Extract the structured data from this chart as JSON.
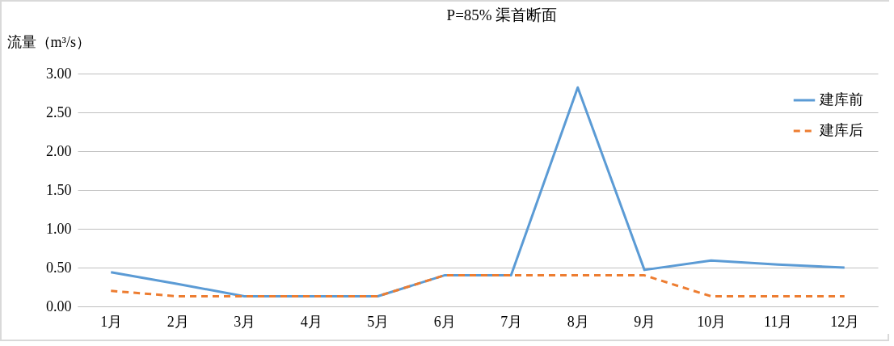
{
  "chart_data": {
    "type": "line",
    "title": "P=85%  渠首断面",
    "ylabel": "流量（m³/s）",
    "categories": [
      "1月",
      "2月",
      "3月",
      "4月",
      "5月",
      "6月",
      "7月",
      "8月",
      "9月",
      "10月",
      "11月",
      "12月"
    ],
    "series": [
      {
        "name": "建库前",
        "color": "#5b9bd5",
        "line_style": "solid",
        "values": [
          0.44,
          0.29,
          0.13,
          0.13,
          0.13,
          0.4,
          0.4,
          2.82,
          0.47,
          0.59,
          0.54,
          0.5
        ]
      },
      {
        "name": "建库后",
        "color": "#ed7d31",
        "line_style": "dashed",
        "values": [
          0.2,
          0.13,
          0.13,
          0.13,
          0.13,
          0.4,
          0.4,
          0.4,
          0.4,
          0.13,
          0.13,
          0.13
        ]
      }
    ],
    "ylim": [
      0,
      3
    ],
    "yticks": [
      {
        "value": 0,
        "label": "0.00"
      },
      {
        "value": 0.5,
        "label": "0.50"
      },
      {
        "value": 1,
        "label": "1.00"
      },
      {
        "value": 1.5,
        "label": "1.50"
      },
      {
        "value": 2,
        "label": "2.00"
      },
      {
        "value": 2.5,
        "label": "2.50"
      },
      {
        "value": 3,
        "label": "3.00"
      }
    ],
    "grid": "y",
    "legend": "top right",
    "marker": "none"
  }
}
